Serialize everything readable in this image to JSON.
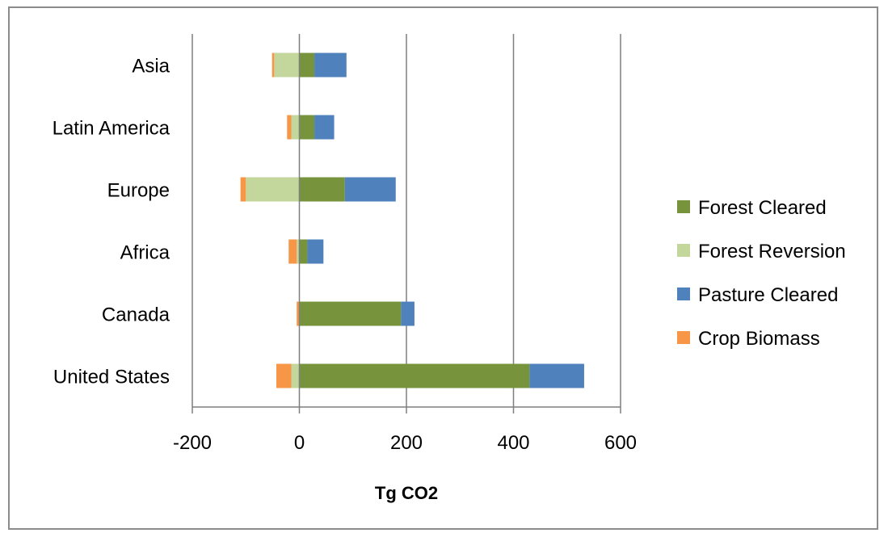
{
  "chart_data": {
    "type": "bar",
    "orientation": "horizontal",
    "stacked": true,
    "categories": [
      "United States",
      "Canada",
      "Africa",
      "Europe",
      "Latin America",
      "Asia"
    ],
    "series": [
      {
        "name": "Forest Cleared",
        "color": "#77933c",
        "values": [
          430,
          190,
          15,
          85,
          28,
          28
        ]
      },
      {
        "name": "Forest Reversion",
        "color": "#c3d69b",
        "values": [
          -15,
          0,
          -5,
          -100,
          -15,
          -47
        ]
      },
      {
        "name": "Pasture Cleared",
        "color": "#4f81bd",
        "values": [
          102,
          25,
          30,
          95,
          37,
          60
        ]
      },
      {
        "name": "Crop Biomass",
        "color": "#f79646",
        "values": [
          -28,
          -5,
          -15,
          -10,
          -8,
          -4
        ]
      }
    ],
    "xlabel": "Tg CO2",
    "ylabel": "",
    "xlim": [
      -200,
      600
    ],
    "xticks": [
      -200,
      0,
      200,
      400,
      600
    ],
    "xtick_labels": [
      "-200",
      "0",
      "200",
      "400",
      "600"
    ],
    "grid": "vertical",
    "legend": "right"
  }
}
